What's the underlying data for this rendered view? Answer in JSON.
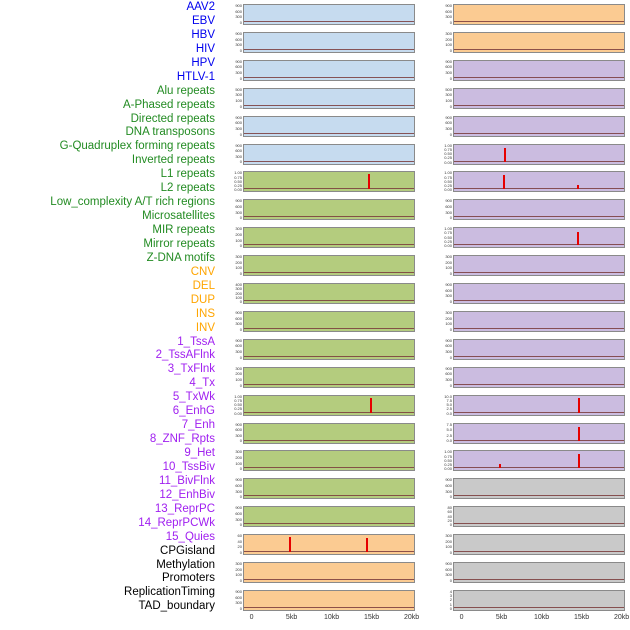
{
  "chart_data": {
    "type": "line",
    "title": "",
    "x_axis": {
      "label": "",
      "range_kb": [
        0,
        20
      ],
      "ticks": [
        "0",
        "5kb",
        "10kb",
        "15kb",
        "20kb"
      ],
      "tick_pos_pct": [
        5,
        28.25,
        51.5,
        74.75,
        98
      ]
    },
    "colors": {
      "label_blue": "#0000ee",
      "label_green": "#228b22",
      "label_orange": "#ffa500",
      "label_purple": "#a020f0",
      "label_black": "#000000",
      "panel_blue": "#c6dbef",
      "panel_green": "#b4cc7e",
      "panel_orange": "#fbcb92",
      "panel_purple": "#cbbce0",
      "panel_gray": "#c9c9c9",
      "spike_red": "#e60000",
      "baseline": "#7a3b3b"
    },
    "columns": [
      {
        "name": "left",
        "tracks": [
          {
            "label": "AAV2",
            "label_color": "label_blue",
            "fill": "panel_blue",
            "yticks": [
              "900",
              "600",
              "300",
              "0"
            ],
            "spikes": []
          },
          {
            "label": "EBV",
            "label_color": "label_blue",
            "fill": "panel_blue",
            "yticks": [
              "900",
              "600",
              "300",
              "0"
            ],
            "spikes": []
          },
          {
            "label": "HBV",
            "label_color": "label_blue",
            "fill": "panel_blue",
            "yticks": [
              "900",
              "600",
              "300",
              "0"
            ],
            "spikes": []
          },
          {
            "label": "HIV",
            "label_color": "label_blue",
            "fill": "panel_blue",
            "yticks": [
              "500",
              "300",
              "100",
              "0"
            ],
            "spikes": []
          },
          {
            "label": "HPV",
            "label_color": "label_blue",
            "fill": "panel_blue",
            "yticks": [
              "900",
              "600",
              "300",
              "0"
            ],
            "spikes": []
          },
          {
            "label": "HTLV-1",
            "label_color": "label_blue",
            "fill": "panel_blue",
            "yticks": [
              "900",
              "600",
              "300",
              "0"
            ],
            "spikes": []
          },
          {
            "label": "Alu repeats",
            "label_color": "label_green",
            "fill": "panel_green",
            "yticks": [
              "1.00",
              "0.75",
              "0.50",
              "0.25",
              "0.00"
            ],
            "spikes": [
              {
                "x_kb": 14.8,
                "h": 0.95
              }
            ]
          },
          {
            "label": "A-Phased repeats",
            "label_color": "label_green",
            "fill": "panel_green",
            "yticks": [
              "900",
              "600",
              "300",
              "0"
            ],
            "spikes": []
          },
          {
            "label": "Directed repeats",
            "label_color": "label_green",
            "fill": "panel_green",
            "yticks": [
              "300",
              "200",
              "100",
              "0"
            ],
            "spikes": []
          },
          {
            "label": "DNA transposons",
            "label_color": "label_green",
            "fill": "panel_green",
            "yticks": [
              "300",
              "200",
              "100",
              "0"
            ],
            "spikes": []
          },
          {
            "label": "G-Quadruplex forming repeats",
            "label_color": "label_green",
            "fill": "panel_green",
            "yticks": [
              "400",
              "300",
              "200",
              "100",
              "0"
            ],
            "spikes": []
          },
          {
            "label": "Inverted repeats",
            "label_color": "label_green",
            "fill": "panel_green",
            "yticks": [
              "900",
              "600",
              "300",
              "0"
            ],
            "spikes": []
          },
          {
            "label": "L1 repeats",
            "label_color": "label_green",
            "fill": "panel_green",
            "yticks": [
              "900",
              "600",
              "300",
              "0"
            ],
            "spikes": []
          },
          {
            "label": "L2 repeats",
            "label_color": "label_green",
            "fill": "panel_green",
            "yticks": [
              "300",
              "200",
              "100",
              "0"
            ],
            "spikes": []
          },
          {
            "label": "Low_complexity A/T rich regions",
            "label_color": "label_green",
            "fill": "panel_green",
            "yticks": [
              "1.00",
              "0.75",
              "0.50",
              "0.25",
              "0.00"
            ],
            "spikes": [
              {
                "x_kb": 15.0,
                "h": 0.9
              }
            ]
          },
          {
            "label": "Microsatellites",
            "label_color": "label_green",
            "fill": "panel_green",
            "yticks": [
              "900",
              "600",
              "300",
              "0"
            ],
            "spikes": []
          },
          {
            "label": "MIR repeats",
            "label_color": "label_green",
            "fill": "panel_green",
            "yticks": [
              "300",
              "200",
              "100",
              "0"
            ],
            "spikes": []
          },
          {
            "label": "Mirror repeats",
            "label_color": "label_green",
            "fill": "panel_green",
            "yticks": [
              "900",
              "600",
              "300",
              "0"
            ],
            "spikes": []
          },
          {
            "label": "Z-DNA motifs",
            "label_color": "label_green",
            "fill": "panel_green",
            "yticks": [
              "900",
              "600",
              "300",
              "0"
            ],
            "spikes": []
          },
          {
            "label": "CNV",
            "label_color": "label_orange",
            "fill": "panel_orange",
            "yticks": [
              "60",
              "40",
              "20",
              "0"
            ],
            "spikes": [
              {
                "x_kb": 4.7,
                "h": 0.95
              },
              {
                "x_kb": 14.5,
                "h": 0.9
              }
            ]
          },
          {
            "label": "DEL",
            "label_color": "label_orange",
            "fill": "panel_orange",
            "yticks": [
              "300",
              "200",
              "100",
              "0"
            ],
            "spikes": []
          },
          {
            "label": "DUP",
            "label_color": "label_orange",
            "fill": "panel_orange",
            "yticks": [
              "900",
              "600",
              "300",
              "0"
            ],
            "spikes": []
          }
        ]
      },
      {
        "name": "right",
        "tracks": [
          {
            "label": "INS",
            "label_color": "label_orange",
            "fill": "panel_orange",
            "yticks": [
              "900",
              "600",
              "300",
              "0"
            ],
            "spikes": []
          },
          {
            "label": "INV",
            "label_color": "label_orange",
            "fill": "panel_orange",
            "yticks": [
              "300",
              "200",
              "100",
              "0"
            ],
            "spikes": []
          },
          {
            "label": "1_TssA",
            "label_color": "label_purple",
            "fill": "panel_purple",
            "yticks": [
              "900",
              "600",
              "300",
              "0"
            ],
            "spikes": []
          },
          {
            "label": "2_TssAFlnk",
            "label_color": "label_purple",
            "fill": "panel_purple",
            "yticks": [
              "500",
              "300",
              "100",
              "0"
            ],
            "spikes": []
          },
          {
            "label": "3_TxFlnk",
            "label_color": "label_purple",
            "fill": "panel_purple",
            "yticks": [
              "900",
              "600",
              "300",
              "0"
            ],
            "spikes": []
          },
          {
            "label": "4_Tx",
            "label_color": "label_purple",
            "fill": "panel_purple",
            "yticks": [
              "1.00",
              "0.75",
              "0.50",
              "0.25",
              "0.00"
            ],
            "spikes": [
              {
                "x_kb": 5.4,
                "h": 0.85
              }
            ]
          },
          {
            "label": "5_TxWk",
            "label_color": "label_purple",
            "fill": "panel_purple",
            "yticks": [
              "1.00",
              "0.75",
              "0.50",
              "0.25",
              "0.00"
            ],
            "spikes": [
              {
                "x_kb": 5.3,
                "h": 0.9
              },
              {
                "x_kb": 14.6,
                "h": 0.3
              }
            ]
          },
          {
            "label": "6_EnhG",
            "label_color": "label_purple",
            "fill": "panel_purple",
            "yticks": [
              "900",
              "600",
              "300",
              "0"
            ],
            "spikes": []
          },
          {
            "label": "7_Enh",
            "label_color": "label_purple",
            "fill": "panel_purple",
            "yticks": [
              "1.00",
              "0.75",
              "0.50",
              "0.25",
              "0.00"
            ],
            "spikes": [
              {
                "x_kb": 14.6,
                "h": 0.85
              }
            ]
          },
          {
            "label": "8_ZNF_Rpts",
            "label_color": "label_purple",
            "fill": "panel_purple",
            "yticks": [
              "300",
              "200",
              "100",
              "0"
            ],
            "spikes": []
          },
          {
            "label": "9_Het",
            "label_color": "label_purple",
            "fill": "panel_purple",
            "yticks": [
              "900",
              "600",
              "300",
              "0"
            ],
            "spikes": []
          },
          {
            "label": "10_TssBiv",
            "label_color": "label_purple",
            "fill": "panel_purple",
            "yticks": [
              "300",
              "200",
              "100",
              "0"
            ],
            "spikes": []
          },
          {
            "label": "11_BivFlnk",
            "label_color": "label_purple",
            "fill": "panel_purple",
            "yticks": [
              "900",
              "600",
              "300",
              "0"
            ],
            "spikes": []
          },
          {
            "label": "12_EnhBiv",
            "label_color": "label_purple",
            "fill": "panel_purple",
            "yticks": [
              "900",
              "600",
              "300",
              "0"
            ],
            "spikes": []
          },
          {
            "label": "13_ReprPC",
            "label_color": "label_purple",
            "fill": "panel_purple",
            "yticks": [
              "10.0",
              "7.5",
              "5.0",
              "2.5",
              "0.0"
            ],
            "spikes": [
              {
                "x_kb": 14.7,
                "h": 0.9
              }
            ]
          },
          {
            "label": "14_ReprPCWk",
            "label_color": "label_purple",
            "fill": "panel_purple",
            "yticks": [
              "7.5",
              "5.0",
              "2.5",
              "0.0"
            ],
            "spikes": [
              {
                "x_kb": 14.7,
                "h": 0.85
              }
            ]
          },
          {
            "label": "15_Quies",
            "label_color": "label_purple",
            "fill": "panel_purple",
            "yticks": [
              "1.00",
              "0.75",
              "0.50",
              "0.25",
              "0.00"
            ],
            "spikes": [
              {
                "x_kb": 4.8,
                "h": 0.25
              },
              {
                "x_kb": 14.7,
                "h": 0.9
              }
            ]
          },
          {
            "label": "CPGisland",
            "label_color": "label_black",
            "fill": "panel_gray",
            "yticks": [
              "900",
              "600",
              "300",
              "0"
            ],
            "spikes": []
          },
          {
            "label": "Methylation",
            "label_color": "label_black",
            "fill": "panel_gray",
            "yticks": [
              "80",
              "60",
              "40",
              "20",
              "0"
            ],
            "spikes": []
          },
          {
            "label": "Promoters",
            "label_color": "label_black",
            "fill": "panel_gray",
            "yticks": [
              "300",
              "200",
              "100",
              "0"
            ],
            "spikes": []
          },
          {
            "label": "ReplicationTiming",
            "label_color": "label_black",
            "fill": "panel_gray",
            "yticks": [
              "900",
              "600",
              "300",
              "0"
            ],
            "spikes": []
          },
          {
            "label": "TAD_boundary",
            "label_color": "label_black",
            "fill": "panel_gray",
            "yticks": [
              "4",
              "3",
              "2",
              "1",
              "0"
            ],
            "spikes": []
          }
        ]
      }
    ]
  }
}
